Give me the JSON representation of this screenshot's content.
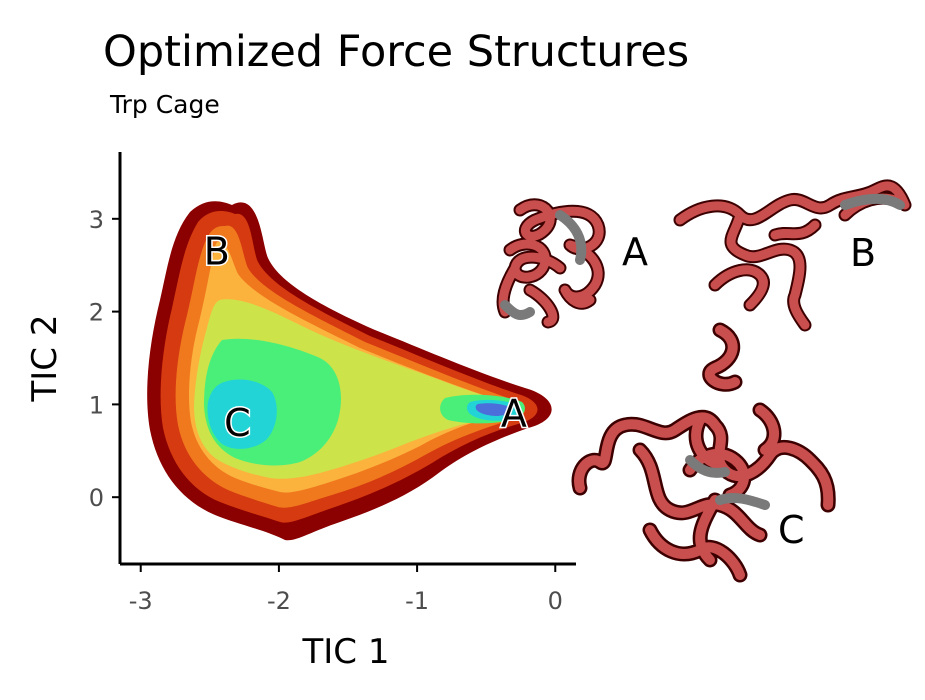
{
  "chart_data": {
    "type": "heatmap",
    "title": "Optimized Force Structures",
    "subtitle": "Trp Cage",
    "xlabel": "TIC 1",
    "ylabel": "TIC 2",
    "xlim": [
      -3.15,
      0.15
    ],
    "ylim": [
      -0.72,
      3.72
    ],
    "xticks": [
      -3,
      -2,
      -1,
      0
    ],
    "yticks": [
      0,
      1,
      2,
      3
    ],
    "xtick_labels": [
      "-3",
      "-2",
      "-1",
      "0"
    ],
    "ytick_labels": [
      "0",
      "1",
      "2",
      "3"
    ],
    "grid": false,
    "levels": [
      "#8b0000",
      "#d63a10",
      "#f0791e",
      "#fbb33e",
      "#cde34a",
      "#4aef7a",
      "#22d4d6",
      "#4c6edb"
    ],
    "regions": [
      {
        "label": "A",
        "x": -0.3,
        "y": 0.9
      },
      {
        "label": "B",
        "x": -2.45,
        "y": 2.65
      },
      {
        "label": "C",
        "x": -2.3,
        "y": 0.8
      }
    ],
    "structure_panels": [
      "A",
      "B",
      "C"
    ]
  }
}
